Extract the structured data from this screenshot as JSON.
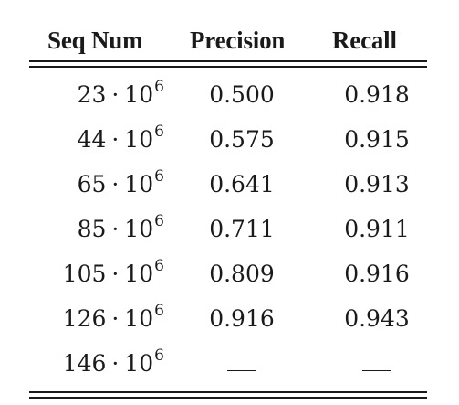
{
  "table": {
    "headers": [
      "Seq Num",
      "Precision",
      "Recall"
    ],
    "rows": [
      {
        "seq_base": "23",
        "seq_op": "·",
        "seq_pow_base": "10",
        "seq_exp": "6",
        "precision": "0.500",
        "recall": "0.918"
      },
      {
        "seq_base": "44",
        "seq_op": "·",
        "seq_pow_base": "10",
        "seq_exp": "6",
        "precision": "0.575",
        "recall": "0.915"
      },
      {
        "seq_base": "65",
        "seq_op": "·",
        "seq_pow_base": "10",
        "seq_exp": "6",
        "precision": "0.641",
        "recall": "0.913"
      },
      {
        "seq_base": "85",
        "seq_op": "·",
        "seq_pow_base": "10",
        "seq_exp": "6",
        "precision": "0.711",
        "recall": "0.911"
      },
      {
        "seq_base": "105",
        "seq_op": "·",
        "seq_pow_base": "10",
        "seq_exp": "6",
        "precision": "0.809",
        "recall": "0.916"
      },
      {
        "seq_base": "126",
        "seq_op": "·",
        "seq_pow_base": "10",
        "seq_exp": "6",
        "precision": "0.916",
        "recall": "0.943"
      },
      {
        "seq_base": "146",
        "seq_op": "·",
        "seq_pow_base": "10",
        "seq_exp": "6",
        "precision": "",
        "recall": ""
      }
    ]
  }
}
